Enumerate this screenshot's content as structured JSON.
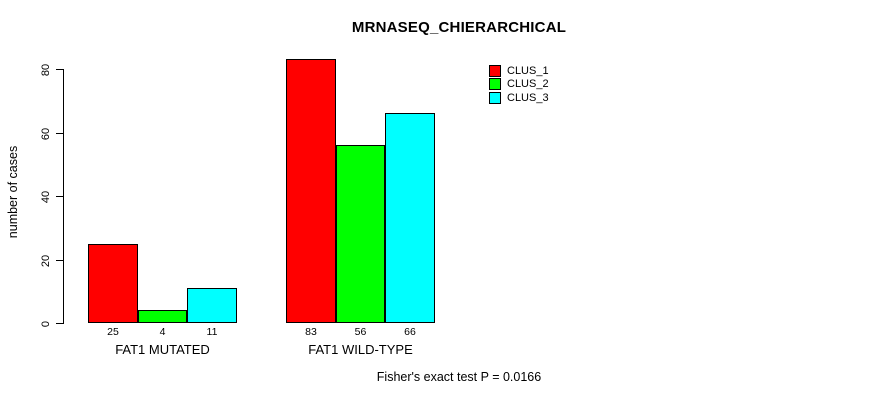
{
  "title": "MRNASEQ_CHIERARCHICAL",
  "colors": {
    "background": "#ffffff",
    "axis": "#000000",
    "bar_border": "#000000",
    "clus_1": "#ff0000",
    "clus_2": "#00ff00",
    "clus_3": "#00ffff"
  },
  "legend": {
    "items": [
      {
        "label": "CLUS_1",
        "color": "#ff0000"
      },
      {
        "label": "CLUS_2",
        "color": "#00ff00"
      },
      {
        "label": "CLUS_3",
        "color": "#00ffff"
      }
    ]
  },
  "chart_data": {
    "type": "bar",
    "title": "MRNASEQ_CHIERARCHICAL",
    "xlabel": "",
    "ylabel": "number of cases",
    "categories": [
      "FAT1 MUTATED",
      "FAT1 WILD-TYPE"
    ],
    "series": [
      {
        "name": "CLUS_1",
        "color": "#ff0000",
        "values": [
          25,
          83
        ]
      },
      {
        "name": "CLUS_2",
        "color": "#00ff00",
        "values": [
          4,
          56
        ]
      },
      {
        "name": "CLUS_3",
        "color": "#00ffff",
        "values": [
          11,
          66
        ]
      }
    ],
    "bar_value_labels": [
      [
        25,
        4,
        11
      ],
      [
        83,
        56,
        66
      ]
    ],
    "yticks": [
      0,
      20,
      40,
      60,
      80
    ],
    "ylim": [
      0,
      83
    ],
    "grid": false,
    "legend_position": "top-right",
    "annotation": "Fisher's exact test P = 0.0166"
  }
}
